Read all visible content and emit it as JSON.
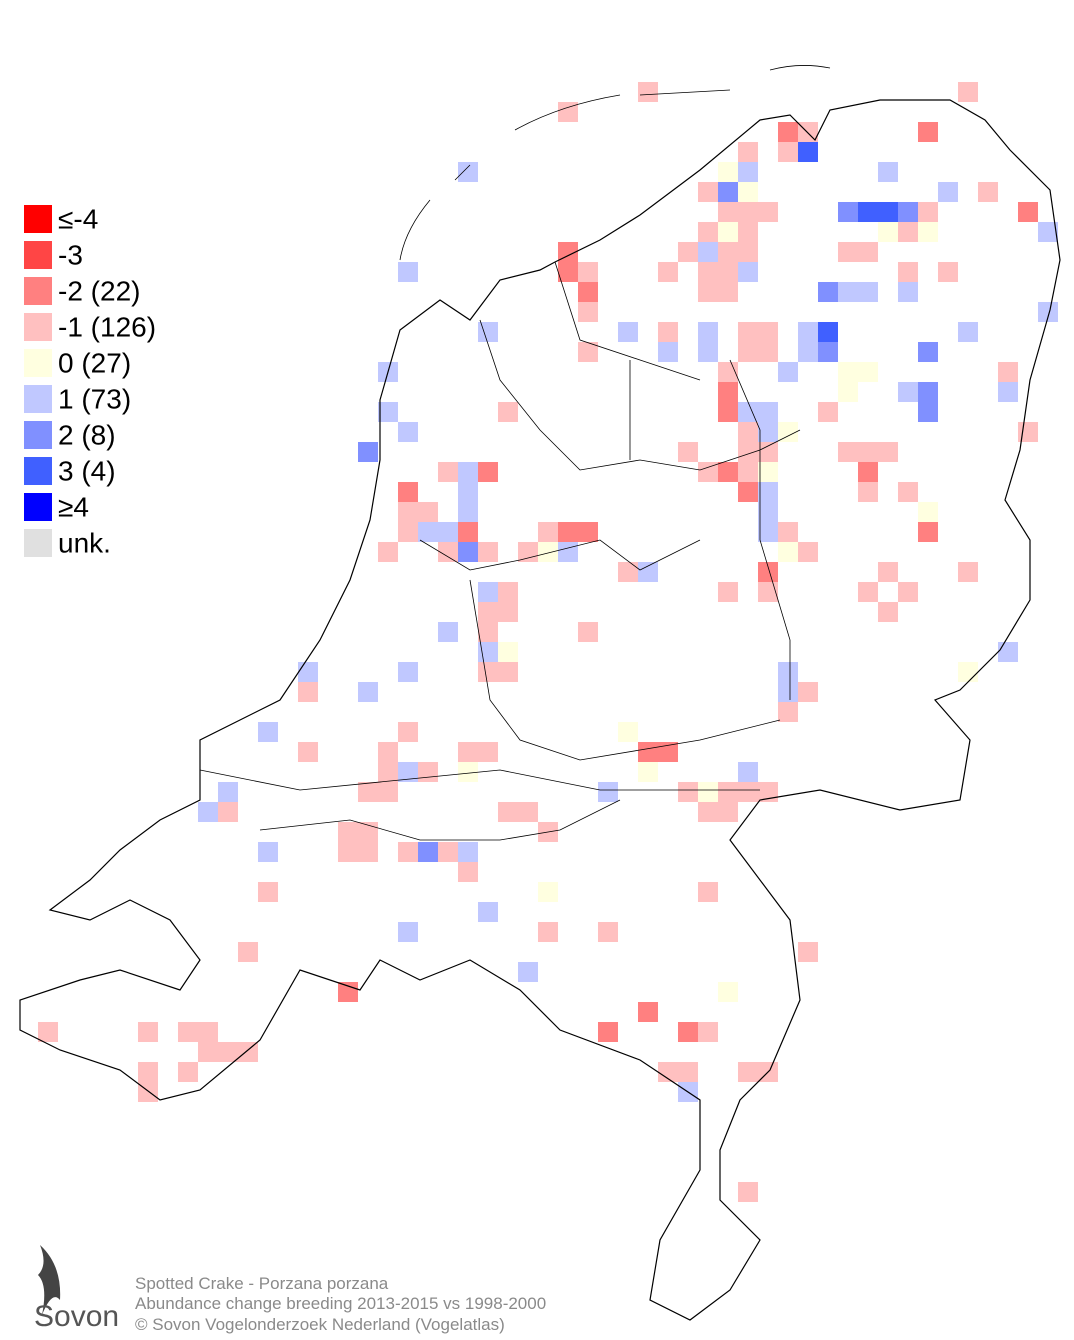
{
  "legend": {
    "items": [
      {
        "label": "≤-4",
        "color": "#ff0000"
      },
      {
        "label": "-3",
        "color": "#ff4545"
      },
      {
        "label": "-2 (22)",
        "color": "#ff8080"
      },
      {
        "label": "-1 (126)",
        "color": "#ffc0c0"
      },
      {
        "label": " 0 (27)",
        "color": "#ffffe0"
      },
      {
        "label": "1 (73)",
        "color": "#c0c8ff"
      },
      {
        "label": "2 (8)",
        "color": "#8090ff"
      },
      {
        "label": "3 (4)",
        "color": "#4060ff"
      },
      {
        "label": "≥4",
        "color": "#0000ff"
      },
      {
        "label": "unk.",
        "color": "#e0e0e0"
      }
    ]
  },
  "caption": {
    "species": "Spotted Crake - Porzana porzana",
    "subtitle": "Abundance change breeding  2013-2015 vs 1998-2000",
    "copyright": "© Sovon Vogelonderzoek Nederland (Vogelatlas)"
  },
  "logo": {
    "text": "Sovon"
  }
}
